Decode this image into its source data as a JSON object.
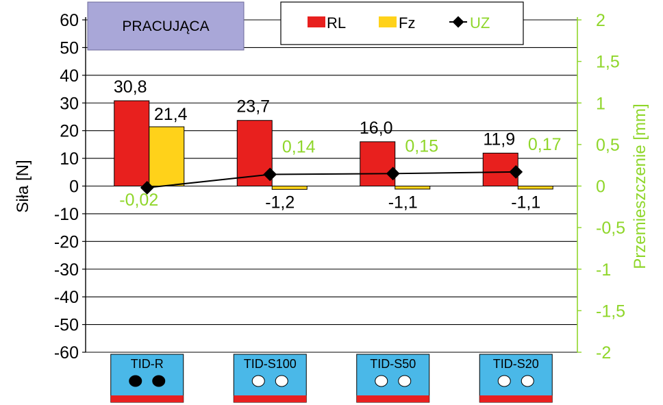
{
  "chart_data": {
    "type": "bar",
    "badge": "PRACUJĄCA",
    "categories": [
      "TID-R",
      "TID-S100",
      "TID-S50",
      "TID-S20"
    ],
    "category_hole_fill": [
      "filled",
      "open",
      "open",
      "open"
    ],
    "series": [
      {
        "name": "RL",
        "axis": "left",
        "kind": "bar",
        "values": [
          30.8,
          23.7,
          16.0,
          11.9
        ],
        "labels": [
          "30,8",
          "23,7",
          "16,0",
          "11,9"
        ]
      },
      {
        "name": "Fz",
        "axis": "left",
        "kind": "bar",
        "values": [
          21.4,
          -1.2,
          -1.1,
          -1.1
        ],
        "labels": [
          "21,4",
          "-1,2",
          "-1,1",
          "-1,1"
        ]
      },
      {
        "name": "UZ",
        "axis": "right",
        "kind": "line",
        "values": [
          -0.02,
          0.14,
          0.15,
          0.17
        ],
        "labels": [
          "-0,02",
          "0,14",
          "0,15",
          "0,17"
        ]
      }
    ],
    "ylabel": "Siła [N]",
    "ylabel_right": "Przemieszczenie [mm]",
    "ylim": [
      -60,
      60
    ],
    "ylim_right": [
      -2,
      2
    ],
    "yticks": [
      "-60",
      "-50",
      "-40",
      "-30",
      "-20",
      "-10",
      "0",
      "10",
      "20",
      "30",
      "40",
      "50",
      "60"
    ],
    "yticks_right": [
      "-2",
      "-1,5",
      "-1",
      "-0,5",
      "0",
      "0,5",
      "1",
      "1,5",
      "2"
    ],
    "grid": true,
    "legend_position": "top"
  },
  "colors": {
    "RL": "#e8201e",
    "Fz": "#ffd21a",
    "UZ": "#000000",
    "uz_labels": "#8fd62a",
    "right_axis": "#8fd62a",
    "category_box": "#4ab8e8",
    "category_strip": "#e82020",
    "badge_fill": "#a9a7d8"
  }
}
